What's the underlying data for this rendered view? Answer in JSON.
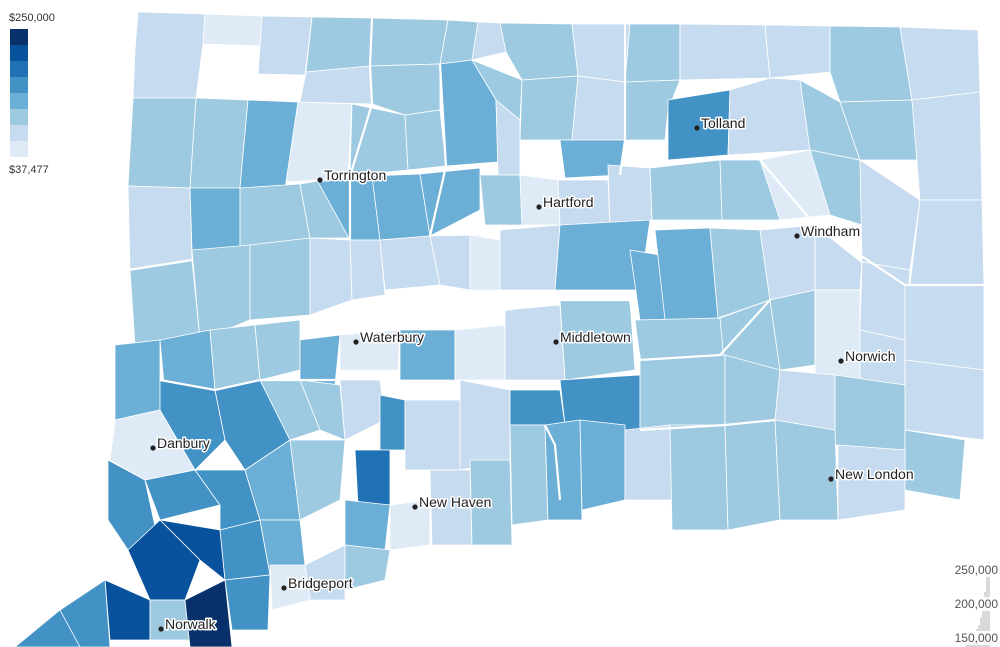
{
  "legend": {
    "max_label": "$250,000",
    "min_label": "$37,477",
    "colors": [
      "#08306b",
      "#08519c",
      "#2171b5",
      "#4292c6",
      "#6baed6",
      "#9ecae1",
      "#c6dbef",
      "#deebf7"
    ]
  },
  "cities": [
    {
      "name": "Torrington"
    },
    {
      "name": "Hartford"
    },
    {
      "name": "Tolland"
    },
    {
      "name": "Windham"
    },
    {
      "name": "Waterbury"
    },
    {
      "name": "Middletown"
    },
    {
      "name": "Norwich"
    },
    {
      "name": "Danbury"
    },
    {
      "name": "New Haven"
    },
    {
      "name": "New London"
    },
    {
      "name": "Bridgeport"
    },
    {
      "name": "Norwalk"
    }
  ],
  "histogram": {
    "ticks": [
      "250,000",
      "200,000",
      "150,000"
    ],
    "bar_color": "#d9d9d9"
  },
  "map_colors": {
    "very_light": "#deebf7",
    "light": "#c6dbef",
    "light_mid": "#9ecae1",
    "mid": "#6baed6",
    "mid_dark": "#4292c6",
    "dark": "#2171b5",
    "darker": "#08519c",
    "darkest": "#08306b"
  }
}
